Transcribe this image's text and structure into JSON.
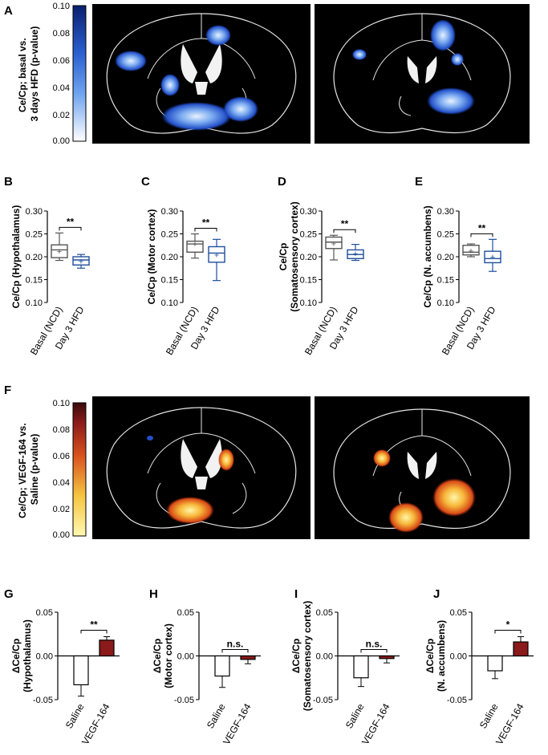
{
  "panels": {
    "A": {
      "letter": "A",
      "colorbar": {
        "label_lines": [
          "Ce/Cp; basal vs.",
          "3 days HFD (p-value)"
        ],
        "ticks": [
          "0.10",
          "0.08",
          "0.06",
          "0.04",
          "0.02",
          "0.00"
        ],
        "color_low": "#ffffff",
        "color_high": "#0a1f6e"
      }
    },
    "F": {
      "letter": "F",
      "colorbar": {
        "label_lines": [
          "Ce/Cp; VEGF-164 vs.",
          "Saline (p-value)"
        ],
        "ticks": [
          "0.10",
          "0.08",
          "0.06",
          "0.04",
          "0.02",
          "0.00"
        ],
        "color_low": "#fff9b0",
        "color_high": "#3a0a0a"
      }
    }
  },
  "chart_data": [
    {
      "panel": "B",
      "type": "box",
      "ylabel_lines": [
        "Ce/Cp (Hypothalamus)"
      ],
      "yticks": [
        "0.30",
        "0.25",
        "0.20",
        "0.15",
        "0.10"
      ],
      "ylim": [
        0.1,
        0.3
      ],
      "categories": [
        "Basal (NCD)",
        "Day 3 HFD"
      ],
      "boxes": [
        {
          "min": 0.192,
          "q1": 0.198,
          "median": 0.215,
          "q3": 0.226,
          "max": 0.252,
          "mean": 0.212
        },
        {
          "min": 0.175,
          "q1": 0.182,
          "median": 0.193,
          "q3": 0.2,
          "max": 0.205,
          "mean": 0.19
        }
      ],
      "colors": [
        "#555555",
        "#1f4e9c"
      ],
      "significance": "**"
    },
    {
      "panel": "C",
      "type": "box",
      "ylabel_lines": [
        "Ce/Cp (Motor cortex)"
      ],
      "yticks": [
        "0.30",
        "0.25",
        "0.20",
        "0.15",
        "0.10"
      ],
      "ylim": [
        0.1,
        0.3
      ],
      "categories": [
        "Basal (NCD)",
        "Day 3 HFD"
      ],
      "boxes": [
        {
          "min": 0.197,
          "q1": 0.21,
          "median": 0.228,
          "q3": 0.234,
          "max": 0.25,
          "mean": 0.228
        },
        {
          "min": 0.148,
          "q1": 0.188,
          "median": 0.208,
          "q3": 0.222,
          "max": 0.238,
          "mean": 0.204
        }
      ],
      "colors": [
        "#555555",
        "#1f4e9c"
      ],
      "significance": "**"
    },
    {
      "panel": "D",
      "type": "box",
      "ylabel_lines": [
        "Ce/Cp",
        "(Somatosensory cortex)"
      ],
      "yticks": [
        "0.30",
        "0.25",
        "0.20",
        "0.15",
        "0.10"
      ],
      "ylim": [
        0.1,
        0.3
      ],
      "categories": [
        "Basal (NCD)",
        "Day 3 HFD"
      ],
      "boxes": [
        {
          "min": 0.193,
          "q1": 0.218,
          "median": 0.232,
          "q3": 0.243,
          "max": 0.247,
          "mean": 0.229
        },
        {
          "min": 0.192,
          "q1": 0.196,
          "median": 0.205,
          "q3": 0.215,
          "max": 0.227,
          "mean": 0.207
        }
      ],
      "colors": [
        "#555555",
        "#1f4e9c"
      ],
      "significance": "**"
    },
    {
      "panel": "E",
      "type": "box",
      "ylabel_lines": [
        "Ce/Cp (N. accumbens)"
      ],
      "yticks": [
        "0.30",
        "0.25",
        "0.20",
        "0.15",
        "0.10"
      ],
      "ylim": [
        0.1,
        0.3
      ],
      "categories": [
        "Basal (NCD)",
        "Day 3 HFD"
      ],
      "boxes": [
        {
          "min": 0.2,
          "q1": 0.204,
          "median": 0.21,
          "q3": 0.225,
          "max": 0.228,
          "mean": 0.213
        },
        {
          "min": 0.168,
          "q1": 0.187,
          "median": 0.196,
          "q3": 0.212,
          "max": 0.238,
          "mean": 0.2
        }
      ],
      "colors": [
        "#555555",
        "#1f4e9c"
      ],
      "significance": "**"
    },
    {
      "panel": "G",
      "type": "bar",
      "ylabel_lines": [
        "ΔCe/Cp",
        "(Hypothalamus)"
      ],
      "yticks": [
        "0.05",
        "0.00",
        "-0.05"
      ],
      "ylim": [
        -0.05,
        0.05
      ],
      "categories": [
        "Saline",
        "VEGF-164"
      ],
      "values": [
        -0.033,
        0.018
      ],
      "errors": [
        0.013,
        0.004
      ],
      "colors": [
        "#ffffff",
        "#8b1a1a"
      ],
      "significance": "**"
    },
    {
      "panel": "H",
      "type": "bar",
      "ylabel_lines": [
        "ΔCe/Cp",
        "(Motor cortex)"
      ],
      "yticks": [
        "0.05",
        "0.00",
        "-0.05"
      ],
      "ylim": [
        -0.05,
        0.05
      ],
      "categories": [
        "Saline",
        "VEGF-164"
      ],
      "values": [
        -0.023,
        -0.004
      ],
      "errors": [
        0.013,
        0.005
      ],
      "colors": [
        "#ffffff",
        "#8b1a1a"
      ],
      "significance": "n.s."
    },
    {
      "panel": "I",
      "type": "bar",
      "ylabel_lines": [
        "ΔCe/Cp",
        "(Somatosensory cortex)"
      ],
      "yticks": [
        "0.05",
        "0.00",
        "-0.05"
      ],
      "ylim": [
        -0.05,
        0.05
      ],
      "categories": [
        "Saline",
        "VEGF-164"
      ],
      "values": [
        -0.025,
        -0.003
      ],
      "errors": [
        0.01,
        0.005
      ],
      "colors": [
        "#ffffff",
        "#8b1a1a"
      ],
      "significance": "n.s."
    },
    {
      "panel": "J",
      "type": "bar",
      "ylabel_lines": [
        "ΔCe/Cp",
        "(N. accumbens)"
      ],
      "yticks": [
        "0.05",
        "0.00",
        "-0.05"
      ],
      "ylim": [
        -0.05,
        0.05
      ],
      "categories": [
        "Saline",
        "VEGF-164"
      ],
      "values": [
        -0.017,
        0.016
      ],
      "errors": [
        0.009,
        0.006
      ],
      "colors": [
        "#ffffff",
        "#8b1a1a"
      ],
      "significance": "*"
    }
  ]
}
